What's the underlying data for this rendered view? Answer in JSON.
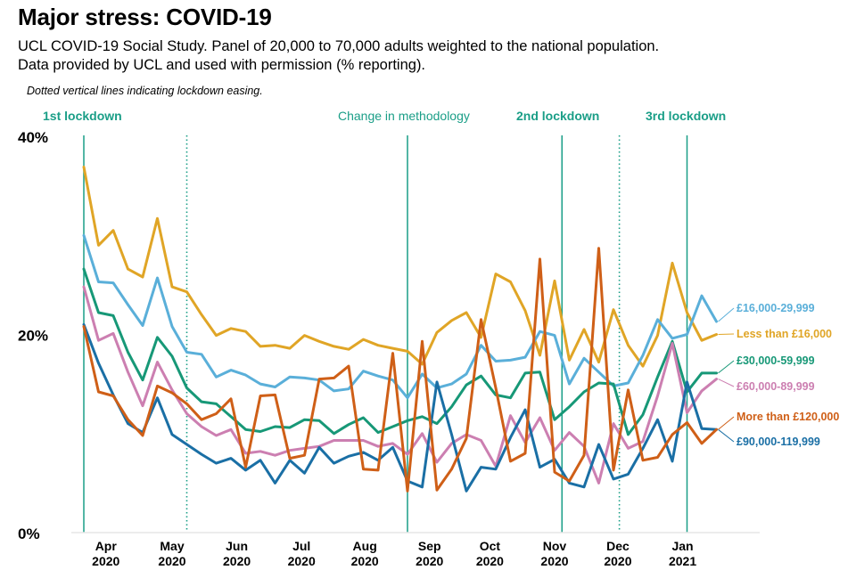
{
  "header": {
    "title": "Major stress: COVID-19",
    "subtitle_line1": "UCL COVID-19 Social Study. Panel of 20,000 to 70,000 adults weighted to the national population.",
    "subtitle_line2": "Data provided by UCL and used with permission (% reporting).",
    "note": "Dotted vertical lines indicating lockdown easing."
  },
  "chart_data": {
    "type": "line",
    "title": "Major stress: COVID-19",
    "xlabel": "",
    "ylabel": "% reporting",
    "ylim": [
      0,
      40
    ],
    "yticks": [
      {
        "value": 0,
        "label": "0%"
      },
      {
        "value": 20,
        "label": "20%"
      },
      {
        "value": 40,
        "label": "40%"
      }
    ],
    "x_index_range": [
      0,
      43
    ],
    "xticks": [
      {
        "index": 1.5,
        "month": "Apr",
        "year": "2020"
      },
      {
        "index": 6.0,
        "month": "May",
        "year": "2020"
      },
      {
        "index": 10.4,
        "month": "Jun",
        "year": "2020"
      },
      {
        "index": 14.8,
        "month": "Jul",
        "year": "2020"
      },
      {
        "index": 19.1,
        "month": "Aug",
        "year": "2020"
      },
      {
        "index": 23.5,
        "month": "Sep",
        "year": "2020"
      },
      {
        "index": 27.6,
        "month": "Oct",
        "year": "2020"
      },
      {
        "index": 32.0,
        "month": "Nov",
        "year": "2020"
      },
      {
        "index": 36.3,
        "month": "Dec",
        "year": "2020"
      },
      {
        "index": 40.7,
        "month": "Jan",
        "year": "2021"
      }
    ],
    "grid": false,
    "events": [
      {
        "index": 0,
        "label": "1st lockdown",
        "style": "solid",
        "bold": true
      },
      {
        "index": 7,
        "label": "",
        "style": "dotted",
        "bold": false
      },
      {
        "index": 22,
        "label": "Change in methodology",
        "style": "solid",
        "bold": false
      },
      {
        "index": 32.5,
        "label": "2nd lockdown",
        "style": "solid",
        "bold": true
      },
      {
        "index": 36.4,
        "label": "",
        "style": "dotted",
        "bold": false
      },
      {
        "index": 41,
        "label": "3rd lockdown",
        "style": "solid",
        "bold": true
      }
    ],
    "legend": "right-end labels",
    "series": [
      {
        "name": "Less than £16,000",
        "color": "#e0a526",
        "values": [
          36.9,
          29.0,
          30.5,
          26.6,
          25.8,
          31.7,
          24.8,
          24.3,
          22.0,
          19.9,
          20.6,
          20.3,
          18.8,
          18.9,
          18.6,
          19.9,
          19.3,
          18.8,
          18.5,
          19.5,
          18.9,
          18.6,
          18.3,
          17.0,
          20.2,
          21.4,
          22.2,
          19.7,
          26.1,
          25.3,
          22.4,
          17.9,
          25.4,
          17.4,
          20.5,
          17.2,
          22.5,
          18.9,
          16.8,
          19.9,
          27.2,
          22.2,
          19.4,
          20.0
        ]
      },
      {
        "name": "£16,000-29,999",
        "color": "#5aafd9",
        "values": [
          30.0,
          25.3,
          25.2,
          23.0,
          20.9,
          25.7,
          20.8,
          18.2,
          18.0,
          15.7,
          16.4,
          15.9,
          15.0,
          14.7,
          15.7,
          15.6,
          15.4,
          14.3,
          14.5,
          16.3,
          15.8,
          15.4,
          13.6,
          16.0,
          14.6,
          15.0,
          16.0,
          18.9,
          17.3,
          17.4,
          17.7,
          20.3,
          19.9,
          15.0,
          17.6,
          16.2,
          14.8,
          15.1,
          17.9,
          21.5,
          19.6,
          20.0,
          23.9,
          21.3
        ]
      },
      {
        "name": "£30,000-59,999",
        "color": "#179877",
        "values": [
          26.6,
          22.2,
          21.9,
          18.2,
          15.4,
          19.7,
          17.8,
          14.6,
          13.2,
          13.0,
          11.7,
          10.4,
          10.2,
          10.7,
          10.6,
          11.4,
          11.3,
          10.0,
          10.9,
          11.6,
          10.1,
          10.7,
          11.3,
          11.7,
          11.0,
          12.7,
          14.9,
          15.8,
          13.9,
          13.6,
          16.1,
          16.2,
          11.4,
          12.7,
          14.2,
          15.1,
          15.0,
          9.9,
          11.9,
          15.7,
          19.3,
          14.2,
          16.1,
          16.1
        ]
      },
      {
        "name": "£60,000-89,999",
        "color": "#cc7fb1",
        "values": [
          24.8,
          19.4,
          20.1,
          16.2,
          12.8,
          17.2,
          14.4,
          12.0,
          10.7,
          9.8,
          10.4,
          8.0,
          8.2,
          7.8,
          8.3,
          8.5,
          8.7,
          9.3,
          9.3,
          9.3,
          8.7,
          9.0,
          7.9,
          10.0,
          7.1,
          9.0,
          9.9,
          9.3,
          6.7,
          11.8,
          9.1,
          11.6,
          8.3,
          10.1,
          8.7,
          5.0,
          11.0,
          8.5,
          9.2,
          13.8,
          19.1,
          12.1,
          14.3,
          15.5
        ]
      },
      {
        "name": "More than £120,000",
        "color": "#cf5f17",
        "values": [
          20.8,
          14.2,
          13.8,
          11.4,
          9.8,
          14.8,
          14.1,
          13.0,
          11.4,
          12.0,
          13.5,
          6.6,
          13.8,
          13.9,
          7.5,
          7.8,
          15.5,
          15.6,
          16.8,
          6.4,
          6.3,
          18.1,
          4.2,
          19.3,
          4.3,
          6.4,
          9.5,
          21.5,
          14.6,
          7.2,
          8.0,
          27.6,
          6.1,
          5.2,
          7.8,
          28.7,
          6.3,
          14.4,
          7.3,
          7.6,
          9.9,
          11.1,
          9.0,
          10.4
        ]
      },
      {
        "name": "£90,000-119,999",
        "color": "#1a6fa5",
        "values": [
          21.0,
          17.1,
          13.9,
          11.0,
          10.1,
          13.6,
          9.9,
          8.9,
          7.9,
          7.0,
          7.5,
          6.3,
          7.3,
          5.0,
          7.3,
          6.0,
          8.6,
          7.0,
          7.7,
          8.1,
          7.3,
          8.6,
          5.2,
          4.6,
          15.2,
          9.9,
          4.2,
          6.6,
          6.4,
          9.6,
          12.4,
          6.6,
          7.4,
          5.0,
          4.6,
          8.9,
          5.4,
          5.9,
          8.5,
          11.4,
          7.2,
          15.2,
          10.5,
          10.4
        ]
      }
    ]
  }
}
